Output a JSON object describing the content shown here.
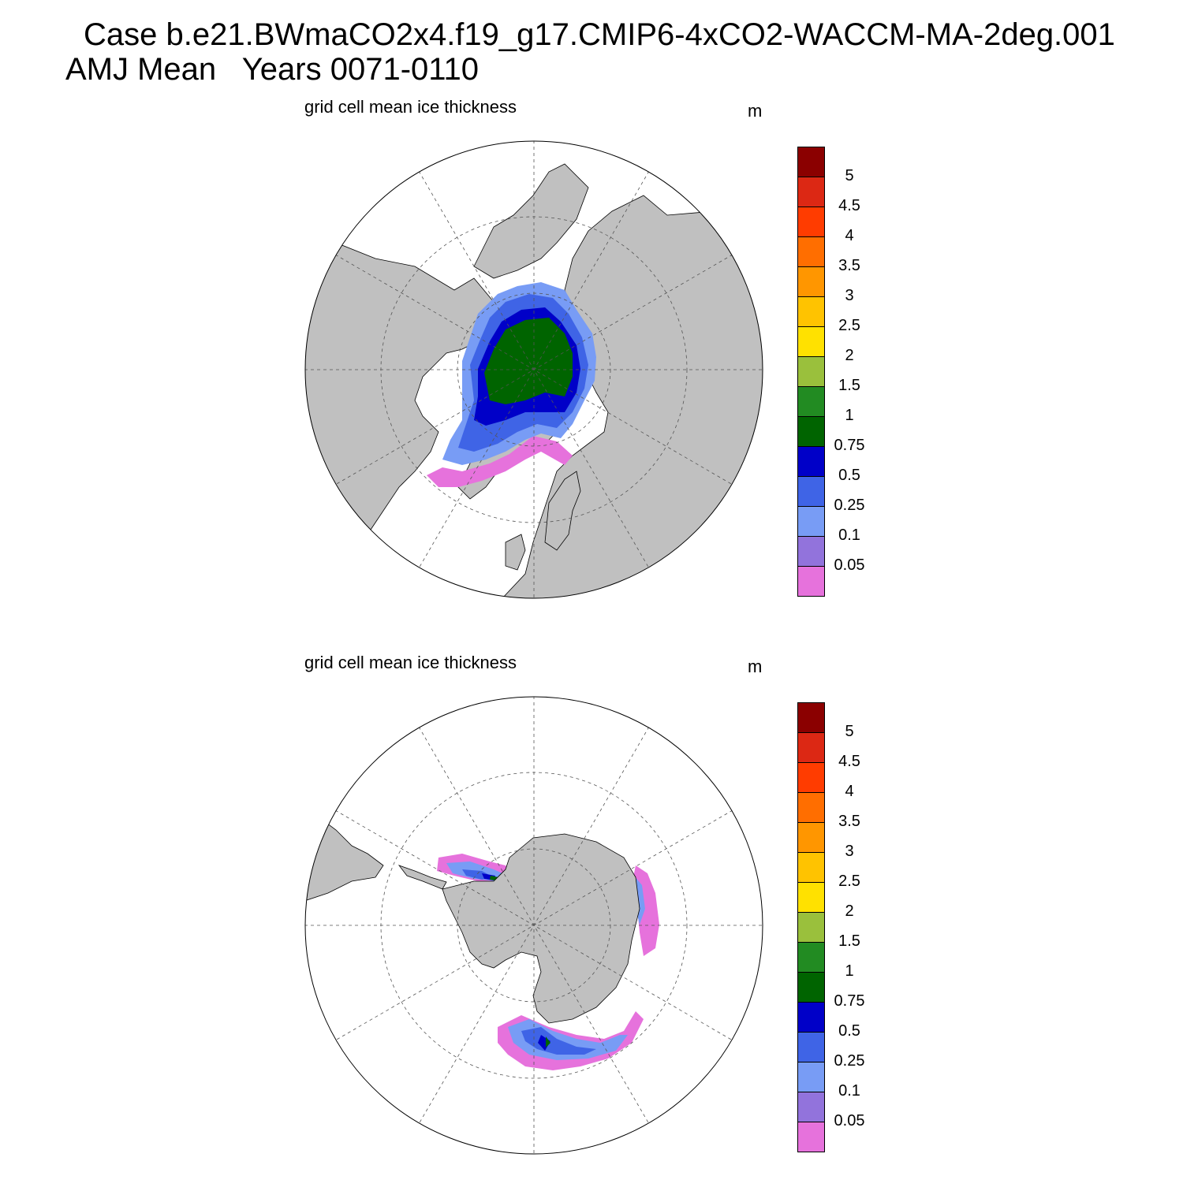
{
  "title": {
    "line1": "Case b.e21.BWmaCO2x4.f19_g17.CMIP6-4xCO2-WACCM-MA-2deg.001",
    "line2": "AMJ Mean   Years 0071-0110"
  },
  "panels": [
    {
      "id": "north",
      "hemisphere": "Arctic",
      "subtitle": "grid cell mean ice thickness",
      "units": "m"
    },
    {
      "id": "south",
      "hemisphere": "Antarctic",
      "subtitle": "grid cell mean ice thickness",
      "units": "m"
    }
  ],
  "colorbar": {
    "labels": [
      "0.05",
      "0.1",
      "0.25",
      "0.5",
      "0.75",
      "1",
      "1.5",
      "2",
      "2.5",
      "3",
      "3.5",
      "4",
      "4.5",
      "5"
    ],
    "colors_bottom_to_top": [
      "#e672dc",
      "#9273dc",
      "#789cf5",
      "#3f64e6",
      "#0000c8",
      "#006400",
      "#228b22",
      "#9ac03c",
      "#ffe100",
      "#ffc300",
      "#ff9600",
      "#ff6e00",
      "#ff3c00",
      "#dc2814",
      "#8b0000"
    ]
  },
  "colors": {
    "land": "#c0c0c0",
    "ocean": "#ffffff",
    "grid": "#555555"
  }
}
